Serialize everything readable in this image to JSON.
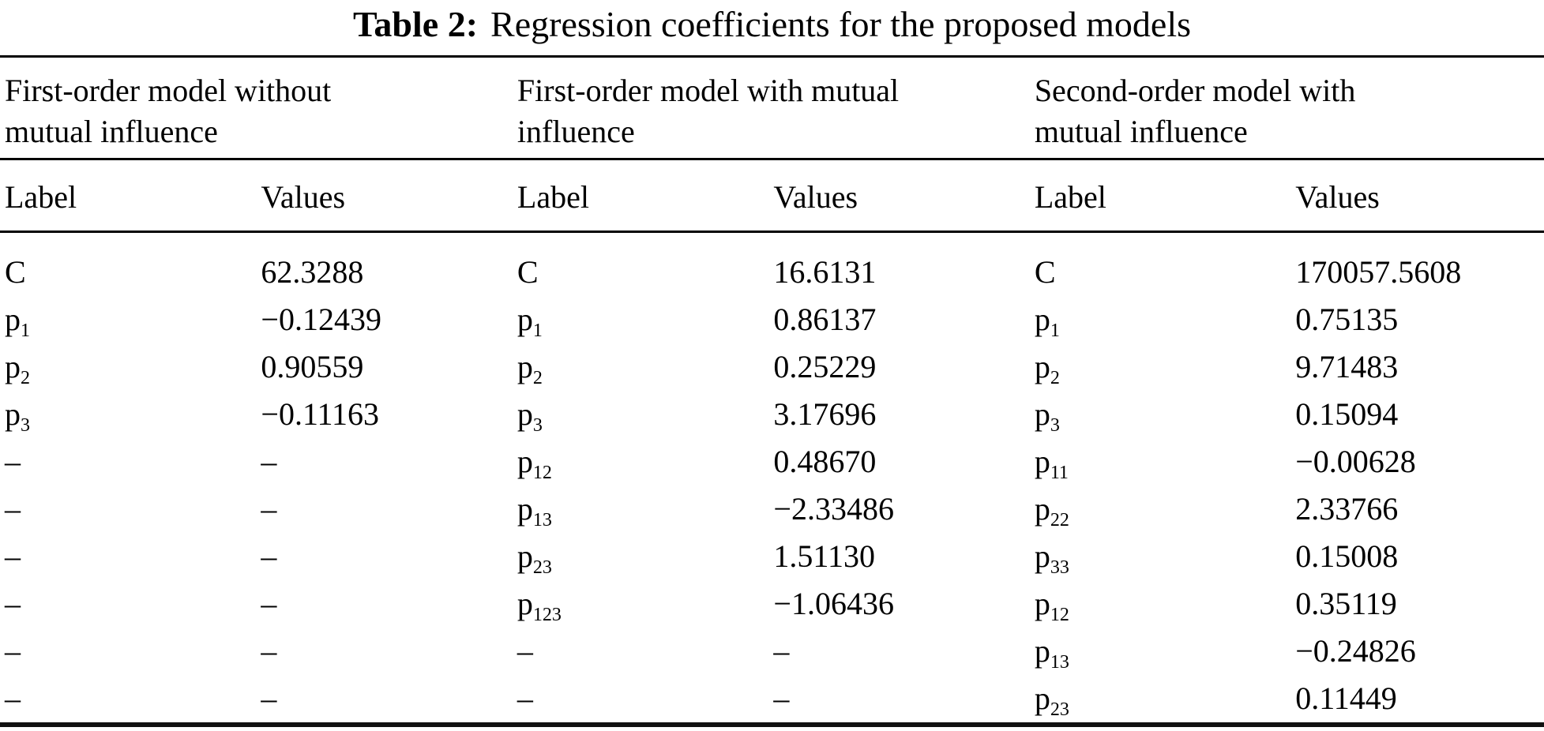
{
  "title": {
    "label": "Table 2:",
    "text": "Regression coefficients for the proposed models"
  },
  "groups": [
    {
      "name": "First-order model without\nmutual influence",
      "label_header": "Label",
      "values_header": "Values"
    },
    {
      "name": "First-order model with mutual\ninfluence",
      "label_header": "Label",
      "values_header": "Values"
    },
    {
      "name": "Second-order model with\nmutual influence",
      "label_header": "Label",
      "values_header": "Values"
    }
  ],
  "placeholder_dash": "–",
  "rows": [
    {
      "cells": [
        {
          "t": "C"
        },
        {
          "t": "62.3288"
        },
        {
          "t": "C"
        },
        {
          "t": "16.6131"
        },
        {
          "t": "C"
        },
        {
          "t": "170057.5608"
        }
      ]
    },
    {
      "cells": [
        {
          "t": "p",
          "sub": "1"
        },
        {
          "t": "−0.12439"
        },
        {
          "t": "p",
          "sub": "1"
        },
        {
          "t": "0.86137"
        },
        {
          "t": "p",
          "sub": "1"
        },
        {
          "t": "0.75135"
        }
      ]
    },
    {
      "cells": [
        {
          "t": "p",
          "sub": "2"
        },
        {
          "t": "0.90559"
        },
        {
          "t": "p",
          "sub": "2"
        },
        {
          "t": "0.25229"
        },
        {
          "t": "p",
          "sub": "2"
        },
        {
          "t": "9.71483"
        }
      ]
    },
    {
      "cells": [
        {
          "t": "p",
          "sub": "3"
        },
        {
          "t": "−0.11163"
        },
        {
          "t": "p",
          "sub": "3"
        },
        {
          "t": "3.17696"
        },
        {
          "t": "p",
          "sub": "3"
        },
        {
          "t": "0.15094"
        }
      ]
    },
    {
      "cells": [
        {
          "t": "–"
        },
        {
          "t": "–"
        },
        {
          "t": "p",
          "sub": "12"
        },
        {
          "t": "0.48670"
        },
        {
          "t": "p",
          "sub": "11"
        },
        {
          "t": "−0.00628"
        }
      ]
    },
    {
      "cells": [
        {
          "t": "–"
        },
        {
          "t": "–"
        },
        {
          "t": "p",
          "sub": "13"
        },
        {
          "t": "−2.33486"
        },
        {
          "t": "p",
          "sub": "22"
        },
        {
          "t": "2.33766"
        }
      ]
    },
    {
      "cells": [
        {
          "t": "–"
        },
        {
          "t": "–"
        },
        {
          "t": "p",
          "sub": "23"
        },
        {
          "t": "1.51130"
        },
        {
          "t": "p",
          "sub": "33"
        },
        {
          "t": "0.15008"
        }
      ]
    },
    {
      "cells": [
        {
          "t": "–"
        },
        {
          "t": "–"
        },
        {
          "t": "p",
          "sub": "123"
        },
        {
          "t": "−1.06436"
        },
        {
          "t": "p",
          "sub": "12"
        },
        {
          "t": "0.35119"
        }
      ]
    },
    {
      "cells": [
        {
          "t": "–"
        },
        {
          "t": "–"
        },
        {
          "t": "–"
        },
        {
          "t": "–"
        },
        {
          "t": "p",
          "sub": "13"
        },
        {
          "t": "−0.24826"
        }
      ]
    },
    {
      "cells": [
        {
          "t": "–"
        },
        {
          "t": "–"
        },
        {
          "t": "–"
        },
        {
          "t": "–"
        },
        {
          "t": "p",
          "sub": "23"
        },
        {
          "t": "0.11449"
        }
      ]
    }
  ]
}
